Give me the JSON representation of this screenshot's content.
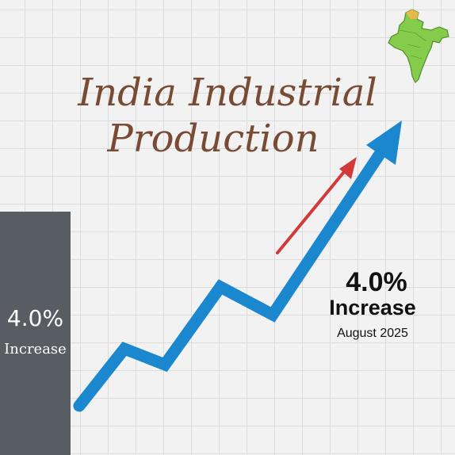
{
  "title_line1": "India Industrial",
  "title_line2": "Production",
  "left_panel": {
    "value": "4.0%",
    "label": "Increase"
  },
  "callout": {
    "value": "4.0%",
    "label": "Increase",
    "date": "August 2025"
  },
  "colors": {
    "trend_line": "#1a87cf",
    "accent_arrow": "#d23a3a",
    "panel": "#585d64",
    "title": "#7a4b34",
    "map": "#86cc4c"
  },
  "icons": {
    "map": "india-map-icon",
    "trend": "up-trend-arrow-icon"
  }
}
